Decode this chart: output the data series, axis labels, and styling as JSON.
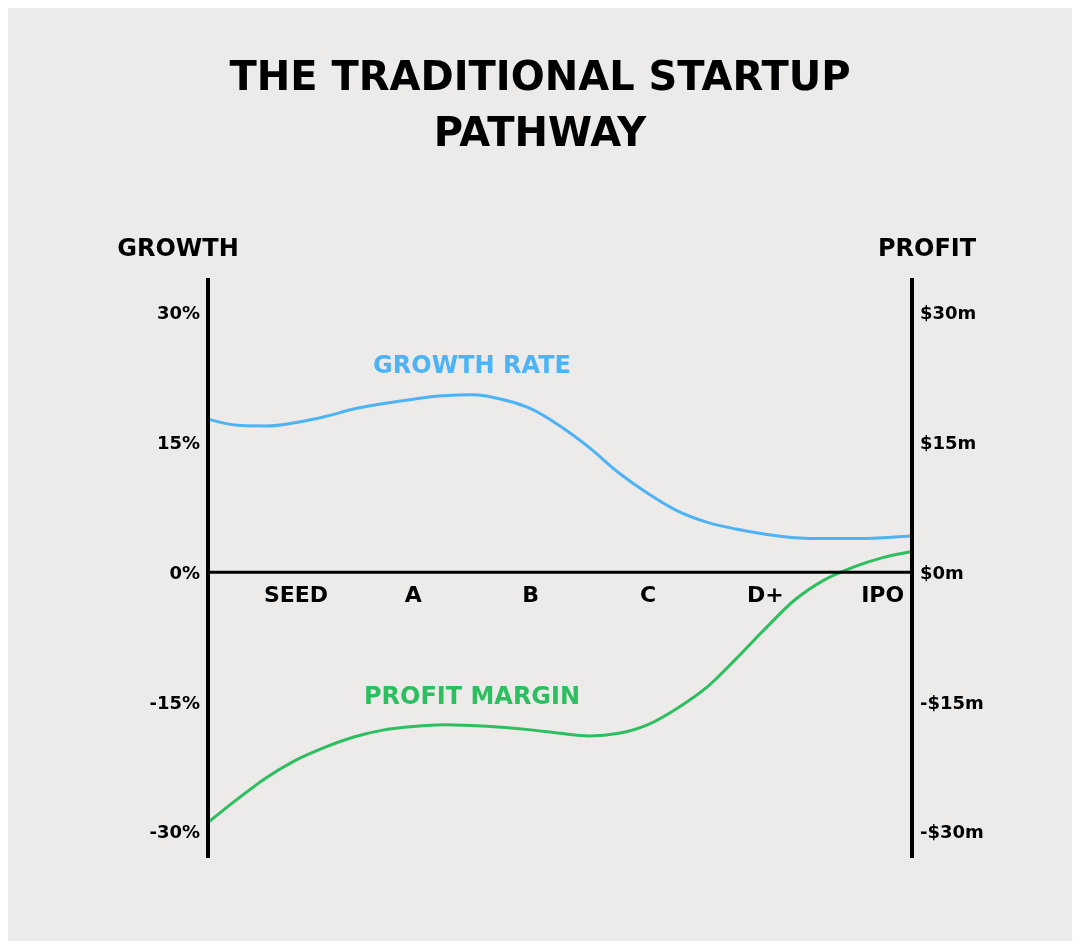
{
  "chart_data": {
    "type": "line",
    "title": "THE TRADITIONAL STARTUP PATHWAY",
    "ylabel": "GROWTH",
    "y2label": "PROFIT",
    "categories": [
      null,
      null,
      null,
      "SEED",
      null,
      null,
      null,
      "A",
      null,
      null,
      null,
      "B",
      null,
      null,
      null,
      "C",
      null,
      null,
      null,
      "D+",
      null,
      null,
      null,
      "IPO",
      null
    ],
    "ylim": [
      -33,
      34
    ],
    "yticks": [
      {
        "value": 30,
        "label": "30%"
      },
      {
        "value": 15,
        "label": "15%"
      },
      {
        "value": 0,
        "label": "0%"
      },
      {
        "value": -15,
        "label": "-15%"
      },
      {
        "value": -30,
        "label": "-30%"
      }
    ],
    "y2lim": [
      -33,
      34
    ],
    "y2ticks": [
      {
        "value": 30,
        "label": "$30m"
      },
      {
        "value": 15,
        "label": "$15m"
      },
      {
        "value": 0,
        "label": "$0m"
      },
      {
        "value": -15,
        "label": "-$15m"
      },
      {
        "value": -30,
        "label": "-$30m"
      }
    ],
    "series": [
      {
        "name": "GROWTH RATE",
        "color": "#4db3f5",
        "values": [
          17.7,
          17.0,
          16.9,
          17.3,
          18.0,
          18.9,
          19.5,
          20.0,
          20.4,
          20.5,
          20.0,
          18.9,
          16.9,
          14.4,
          11.5,
          9.1,
          7.1,
          5.8,
          5.0,
          4.4,
          4.0,
          3.9,
          3.9,
          4.0,
          4.2
        ]
      },
      {
        "name": "PROFIT MARGIN",
        "color": "#2dbe60",
        "values": [
          -28.9,
          -26.2,
          -23.7,
          -21.7,
          -20.2,
          -19.0,
          -18.2,
          -17.8,
          -17.6,
          -17.7,
          -17.9,
          -18.2,
          -18.6,
          -18.9,
          -18.6,
          -17.6,
          -15.7,
          -13.3,
          -10.0,
          -6.5,
          -3.2,
          -0.9,
          0.6,
          1.7,
          2.4
        ]
      }
    ],
    "legend": false,
    "grid": false,
    "marker": "none",
    "line_style": "solid"
  }
}
